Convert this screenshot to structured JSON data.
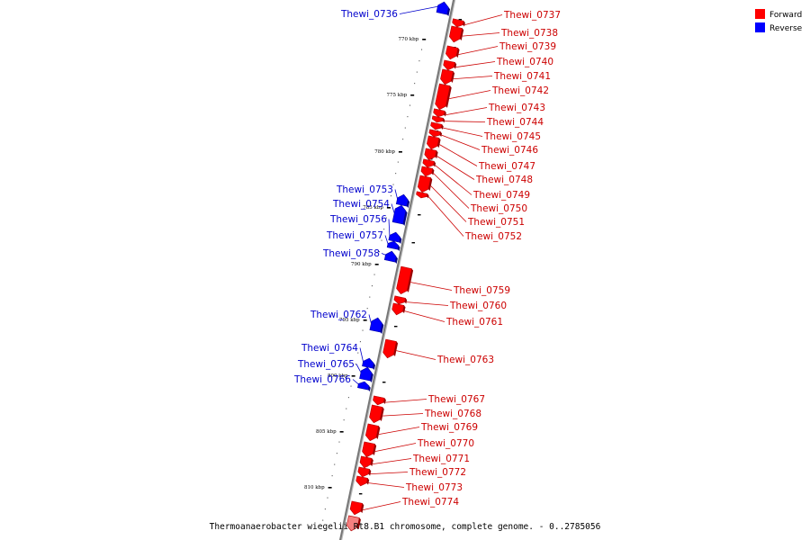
{
  "legend": {
    "forward": "Forward",
    "reverse": "Reverse"
  },
  "colors": {
    "forward": "#ff0000",
    "reverse": "#0000ff",
    "forward_label": "#cc0000",
    "reverse_label": "#0000cc",
    "backbone": "#777777"
  },
  "caption": "Thermoanaerobacter wiegelii Rt8.B1 chromosome, complete genome. - 0..2785056",
  "ticks": [
    "770 kbp",
    "775 kbp",
    "780 kbp",
    "785 kbp",
    "790 kbp",
    "795 kbp",
    "800 kbp",
    "805 kbp",
    "810 kbp"
  ],
  "genes_reverse": [
    "Thewi_0736",
    "Thewi_0753",
    "Thewi_0754",
    "Thewi_0756",
    "Thewi_0757",
    "Thewi_0758",
    "Thewi_0762",
    "Thewi_0764",
    "Thewi_0765",
    "Thewi_0766"
  ],
  "genes_forward": [
    "Thewi_0737",
    "Thewi_0738",
    "Thewi_0739",
    "Thewi_0740",
    "Thewi_0741",
    "Thewi_0742",
    "Thewi_0743",
    "Thewi_0744",
    "Thewi_0745",
    "Thewi_0746",
    "Thewi_0747",
    "Thewi_0748",
    "Thewi_0749",
    "Thewi_0750",
    "Thewi_0751",
    "Thewi_0752",
    "Thewi_0759",
    "Thewi_0760",
    "Thewi_0761",
    "Thewi_0763",
    "Thewi_0767",
    "Thewi_0768",
    "Thewi_0769",
    "Thewi_0770",
    "Thewi_0771",
    "Thewi_0772",
    "Thewi_0773",
    "Thewi_0774"
  ]
}
